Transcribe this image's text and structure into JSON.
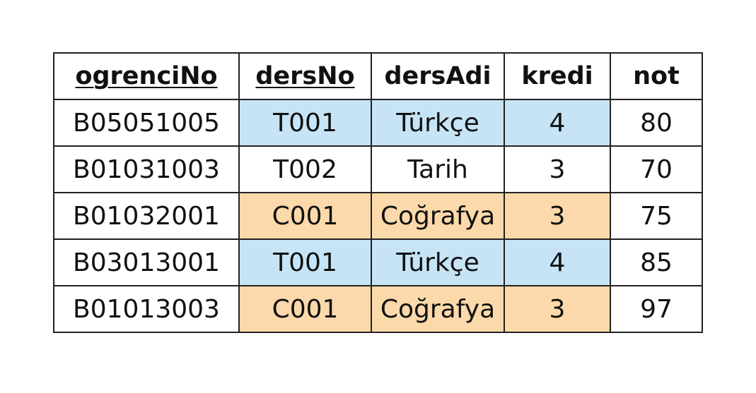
{
  "headers": [
    {
      "label": "ogrenciNo",
      "primary_key": true
    },
    {
      "label": "dersNo",
      "primary_key": true
    },
    {
      "label": "dersAdi",
      "primary_key": false
    },
    {
      "label": "kredi",
      "primary_key": false
    },
    {
      "label": "not",
      "primary_key": false
    }
  ],
  "highlight_colors": {
    "blue": "#c6e4f5",
    "orange": "#fcd9aa"
  },
  "rows": [
    {
      "cells": [
        "B05051005",
        "T001",
        "Türkçe",
        "4",
        "80"
      ],
      "highlight": "blue"
    },
    {
      "cells": [
        "B01031003",
        "T002",
        "Tarih",
        "3",
        "70"
      ],
      "highlight": "none"
    },
    {
      "cells": [
        "B01032001",
        "C001",
        "Coğrafya",
        "3",
        "75"
      ],
      "highlight": "orange"
    },
    {
      "cells": [
        "B03013001",
        "T001",
        "Türkçe",
        "4",
        "85"
      ],
      "highlight": "blue"
    },
    {
      "cells": [
        "B01013003",
        "C001",
        "Coğrafya",
        "3",
        "97"
      ],
      "highlight": "orange"
    }
  ]
}
